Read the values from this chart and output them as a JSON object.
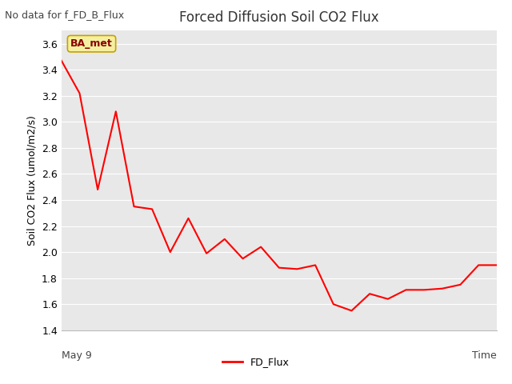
{
  "title": "Forced Diffusion Soil CO2 Flux",
  "ylabel": "Soil CO2 Flux (umol/m2/s)",
  "no_data_label": "No data for f_FD_B_Flux",
  "annotation_label": "BA_met",
  "ylim": [
    1.4,
    3.7
  ],
  "yticks": [
    1.4,
    1.6,
    1.8,
    2.0,
    2.2,
    2.4,
    2.6,
    2.8,
    3.0,
    3.2,
    3.4,
    3.6
  ],
  "x_start_label": "May 9",
  "x_end_label": "Time",
  "legend_label": "FD_Flux",
  "line_color": "#ff0000",
  "fig_bg_color": "#ffffff",
  "plot_bg_color": "#e8e8e8",
  "grid_color": "#ffffff",
  "x_values": [
    0,
    1,
    2,
    3,
    4,
    5,
    6,
    7,
    8,
    9,
    10,
    11,
    12,
    13,
    14,
    15,
    16,
    17,
    18,
    19,
    20,
    21,
    22,
    23,
    24
  ],
  "y_values": [
    3.47,
    3.22,
    2.48,
    3.08,
    2.35,
    2.33,
    2.0,
    2.26,
    1.99,
    2.1,
    1.95,
    2.04,
    1.88,
    1.87,
    1.9,
    1.6,
    1.55,
    1.68,
    1.64,
    1.71,
    1.71,
    1.72,
    1.75,
    1.9,
    1.9
  ],
  "title_fontsize": 12,
  "ylabel_fontsize": 9,
  "ytick_fontsize": 9,
  "annotation_fontsize": 9,
  "no_data_fontsize": 9,
  "legend_fontsize": 9
}
